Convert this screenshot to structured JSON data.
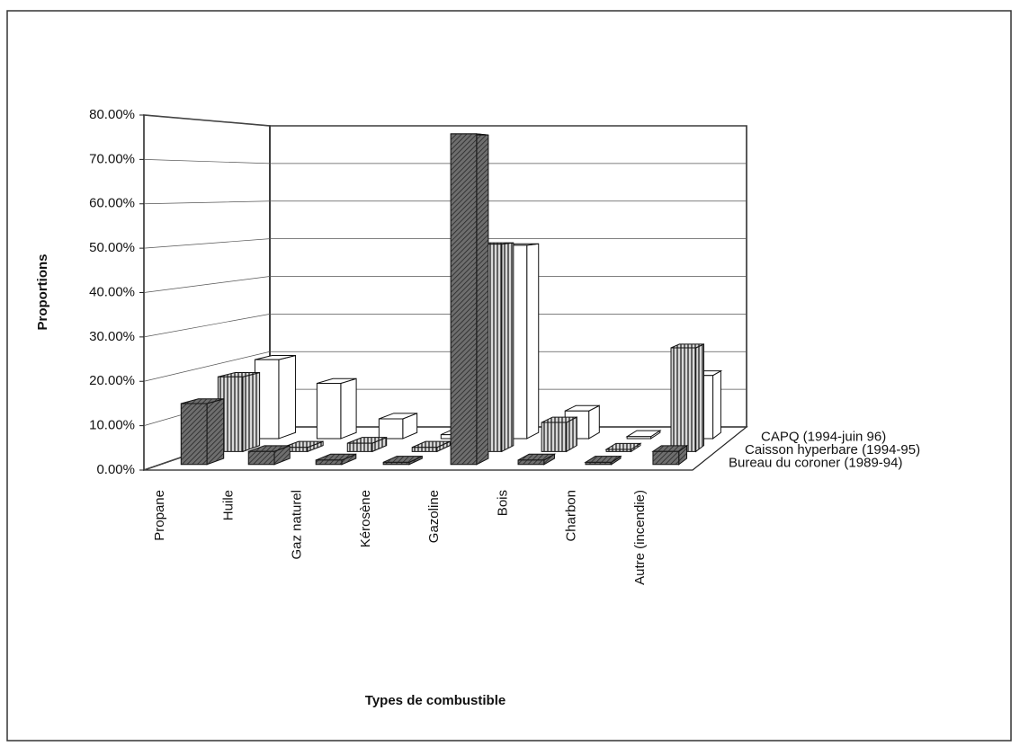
{
  "chart_data": {
    "type": "bar3d",
    "x_label": "Types de combustible",
    "y_label": "Proportions",
    "categories": [
      "Propane",
      "Huile",
      "Gaz naturel",
      "Kérosène",
      "Gazoline",
      "Bois",
      "Charbon",
      "Autre (incendie)"
    ],
    "series": [
      {
        "name": "Bureau du coroner (1989-94)",
        "color": "#6e6e6e",
        "values": [
          14,
          3,
          1,
          0.5,
          76,
          1,
          0.5,
          3
        ]
      },
      {
        "name": "Caisson hyperbare (1994-95)",
        "color": "#d8d8d8",
        "values": [
          18,
          1,
          2,
          1,
          50,
          7,
          0.5,
          25
        ]
      },
      {
        "name": "CAPQ (1994-juin 96)",
        "color": "#ffffff",
        "values": [
          20,
          14,
          5,
          1,
          49,
          7,
          0.5,
          16
        ]
      }
    ],
    "ylim": [
      0,
      80
    ],
    "yticks": [
      {
        "value": 0,
        "label": "0.00%"
      },
      {
        "value": 10,
        "label": "10.00%"
      },
      {
        "value": 20,
        "label": "20.00%"
      },
      {
        "value": 30,
        "label": "30.00%"
      },
      {
        "value": 40,
        "label": "40.00%"
      },
      {
        "value": 50,
        "label": "50.00%"
      },
      {
        "value": 60,
        "label": "60.00%"
      },
      {
        "value": 70,
        "label": "70.00%"
      },
      {
        "value": 80,
        "label": "80.00%"
      }
    ],
    "grid": true
  }
}
